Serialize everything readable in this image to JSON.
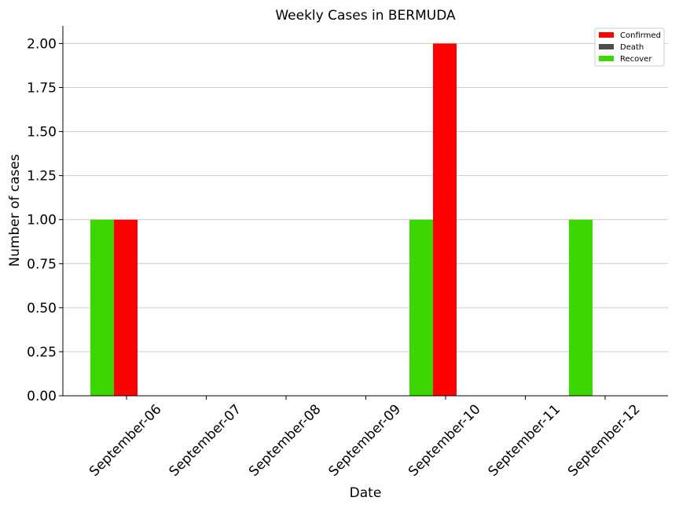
{
  "chart_data": {
    "type": "bar",
    "title": "Weekly Cases in BERMUDA",
    "xlabel": "Date",
    "ylabel": "Number of cases",
    "categories": [
      "September-06",
      "September-07",
      "September-08",
      "September-09",
      "September-10",
      "September-11",
      "September-12"
    ],
    "series": [
      {
        "name": "Confirmed",
        "color": "#ff0000",
        "values": [
          1,
          0,
          0,
          0,
          2,
          0,
          0
        ]
      },
      {
        "name": "Death",
        "color": "#4d4d4d",
        "values": [
          0,
          0,
          0,
          0,
          0,
          0,
          0
        ]
      },
      {
        "name": "Recover",
        "color": "#3cd600",
        "values": [
          1,
          0,
          0,
          0,
          1,
          0,
          1
        ]
      }
    ],
    "ylim": [
      0,
      2.1
    ],
    "yticks": [
      "0.00",
      "0.25",
      "0.50",
      "0.75",
      "1.00",
      "1.25",
      "1.50",
      "1.75",
      "2.00"
    ],
    "grid": "horizontal",
    "legend_position": "top-right"
  }
}
